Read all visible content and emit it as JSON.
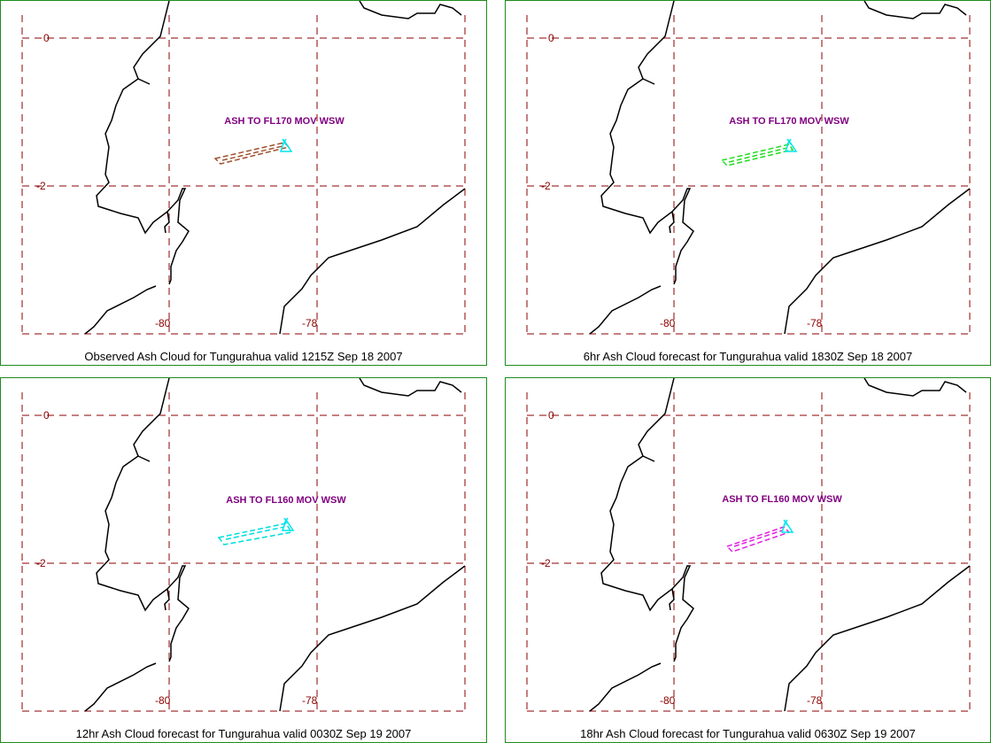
{
  "colors": {
    "panel_border": "#1e8c1e",
    "grid": "#8b0000",
    "label": "#8b0000",
    "coast": "#000000",
    "annotation": "#800080",
    "vent_marker": "#00e5ee"
  },
  "axis_labels": {
    "lat_0": "0",
    "lat_m2": "-2",
    "lon_m80": "-80",
    "lon_m78": "-78"
  },
  "panels": [
    {
      "caption": "Observed Ash Cloud for Tungurahua valid 1215Z Sep 18 2007",
      "advisory": "ASH TO FL170 MOV WSW",
      "cloud_color": "#a0522d"
    },
    {
      "caption": "6hr Ash Cloud forecast for Tungurahua valid 1830Z Sep 18 2007",
      "advisory": "ASH TO FL170 MOV WSW",
      "cloud_color": "#22dd22"
    },
    {
      "caption": "12hr Ash Cloud forecast for Tungurahua valid 0030Z Sep 19 2007",
      "advisory": "ASH TO FL160 MOV WSW",
      "cloud_color": "#00dddd"
    },
    {
      "caption": "18hr Ash Cloud forecast for Tungurahua valid 0630Z Sep 19 2007",
      "advisory": "ASH TO FL160 MOV WSW",
      "cloud_color": "#e020e0"
    }
  ]
}
